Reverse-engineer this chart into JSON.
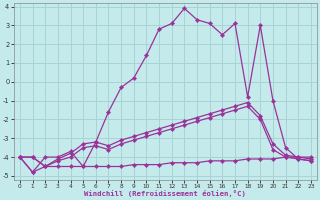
{
  "xlabel": "Windchill (Refroidissement éolien,°C)",
  "xlim": [
    0,
    23
  ],
  "ylim": [
    -5,
    4
  ],
  "xticks": [
    0,
    1,
    2,
    3,
    4,
    5,
    6,
    7,
    8,
    9,
    10,
    11,
    12,
    13,
    14,
    15,
    16,
    17,
    18,
    19,
    20,
    21,
    22,
    23
  ],
  "yticks": [
    -5,
    -4,
    -3,
    -2,
    -1,
    0,
    1,
    2,
    3,
    4
  ],
  "bg_color": "#c5eaec",
  "grid_color": "#a8d4d6",
  "line_color": "#993399",
  "line1_y": [
    -4.0,
    -4.8,
    -4.0,
    -4.0,
    -3.7,
    -4.5,
    -3.2,
    -1.6,
    -0.3,
    0.2,
    1.4,
    2.8,
    3.1,
    3.9,
    3.3,
    3.1,
    2.5,
    3.1,
    -0.8,
    3.0,
    -1.0,
    -3.5,
    -4.1,
    -4.2
  ],
  "line2_y": [
    -4.0,
    -4.0,
    -4.5,
    -4.1,
    -3.8,
    -3.3,
    -3.2,
    -3.4,
    -3.1,
    -2.9,
    -2.7,
    -2.5,
    -2.3,
    -2.1,
    -1.9,
    -1.7,
    -1.5,
    -1.3,
    -1.1,
    -1.8,
    -3.3,
    -3.9,
    -4.0,
    -4.1
  ],
  "line3_y": [
    -4.0,
    -4.0,
    -4.5,
    -4.2,
    -4.0,
    -3.5,
    -3.4,
    -3.6,
    -3.3,
    -3.1,
    -2.9,
    -2.7,
    -2.5,
    -2.3,
    -2.1,
    -1.9,
    -1.7,
    -1.5,
    -1.3,
    -2.0,
    -3.6,
    -4.0,
    -4.1,
    -4.2
  ],
  "line4_y": [
    -4.0,
    -4.8,
    -4.5,
    -4.5,
    -4.5,
    -4.5,
    -4.5,
    -4.5,
    -4.5,
    -4.4,
    -4.4,
    -4.4,
    -4.3,
    -4.3,
    -4.3,
    -4.2,
    -4.2,
    -4.2,
    -4.1,
    -4.1,
    -4.1,
    -4.0,
    -4.0,
    -4.0
  ]
}
